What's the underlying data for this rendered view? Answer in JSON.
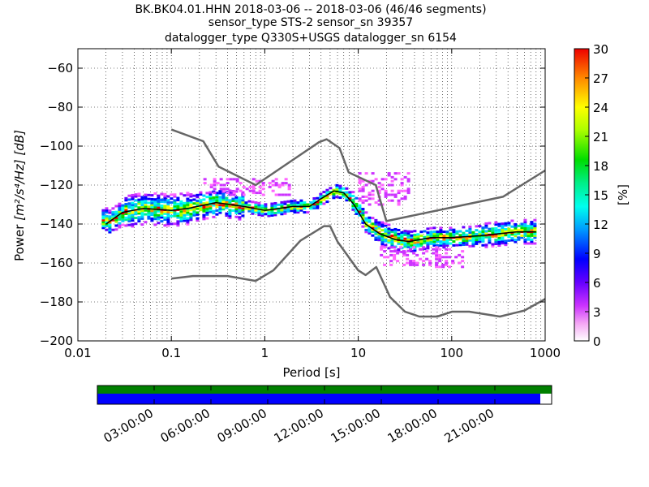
{
  "chart_data": {
    "type": "heatmap",
    "title_lines": [
      "BK.BK04.01.HHN   2018-03-06 -- 2018-03-06  (46/46 segments)",
      "sensor_type STS-2 sensor_sn 39357",
      "datalogger_type Q330S+USGS datalogger_sn 6154"
    ],
    "xlabel": "Period [s]",
    "ylabel_text": "Power",
    "ylabel_units": "[m²/s⁴/Hz] [dB]",
    "xscale": "log",
    "xlim": [
      0.01,
      1000
    ],
    "ylim": [
      -200,
      -50
    ],
    "x_ticks": [
      {
        "value": 0.01,
        "label": "0.01"
      },
      {
        "value": 0.1,
        "label": "0.1"
      },
      {
        "value": 1,
        "label": "1"
      },
      {
        "value": 10,
        "label": "10"
      },
      {
        "value": 100,
        "label": "100"
      },
      {
        "value": 1000,
        "label": "1000"
      }
    ],
    "y_ticks": [
      {
        "value": -60,
        "label": "−60"
      },
      {
        "value": -80,
        "label": "−80"
      },
      {
        "value": -100,
        "label": "−100"
      },
      {
        "value": -120,
        "label": "−120"
      },
      {
        "value": -140,
        "label": "−140"
      },
      {
        "value": -160,
        "label": "−160"
      },
      {
        "value": -180,
        "label": "−180"
      },
      {
        "value": -200,
        "label": "−200"
      }
    ],
    "grid": true,
    "colorbar": {
      "label": "[%]",
      "range": [
        0,
        30
      ],
      "ticks": [
        "0",
        "3",
        "6",
        "9",
        "12",
        "15",
        "18",
        "21",
        "24",
        "27",
        "30"
      ]
    },
    "series": [
      {
        "name": "NHNM",
        "color": "#666666",
        "points": [
          [
            0.1,
            -91.5
          ],
          [
            0.22,
            -97.5
          ],
          [
            0.32,
            -110.5
          ],
          [
            0.8,
            -120
          ],
          [
            3.8,
            -98
          ],
          [
            4.6,
            -96.5
          ],
          [
            6.3,
            -101
          ],
          [
            7.9,
            -113.5
          ],
          [
            15.4,
            -120
          ],
          [
            20,
            -138.5
          ],
          [
            354,
            -126
          ],
          [
            1000,
            -112.5
          ]
        ]
      },
      {
        "name": "NLNM",
        "color": "#666666",
        "points": [
          [
            0.1,
            -168
          ],
          [
            0.17,
            -166.7
          ],
          [
            0.4,
            -166.7
          ],
          [
            0.8,
            -169.2
          ],
          [
            1.24,
            -163.7
          ],
          [
            2.4,
            -148.6
          ],
          [
            4.3,
            -141.1
          ],
          [
            5,
            -141.1
          ],
          [
            6,
            -149
          ],
          [
            10,
            -163.8
          ],
          [
            12,
            -166.2
          ],
          [
            15.6,
            -162.1
          ],
          [
            21.9,
            -177.5
          ],
          [
            31.6,
            -185
          ],
          [
            45,
            -187.5
          ],
          [
            70,
            -187.5
          ],
          [
            101,
            -185
          ],
          [
            154,
            -185
          ],
          [
            328,
            -187.5
          ],
          [
            600,
            -184.4
          ],
          [
            1000,
            -178.5
          ]
        ]
      },
      {
        "name": "Mode",
        "color": "#000000",
        "points": [
          [
            0.02,
            -140
          ],
          [
            0.03,
            -134
          ],
          [
            0.05,
            -132
          ],
          [
            0.1,
            -133
          ],
          [
            0.15,
            -132
          ],
          [
            0.3,
            -129
          ],
          [
            0.6,
            -131
          ],
          [
            1,
            -133
          ],
          [
            2,
            -131
          ],
          [
            3,
            -131
          ],
          [
            4,
            -127
          ],
          [
            5.5,
            -123
          ],
          [
            7,
            -124
          ],
          [
            9,
            -130
          ],
          [
            12,
            -140
          ],
          [
            17,
            -145
          ],
          [
            25,
            -148
          ],
          [
            35,
            -149
          ],
          [
            60,
            -147
          ],
          [
            100,
            -147
          ],
          [
            200,
            -146
          ],
          [
            500,
            -144
          ],
          [
            800,
            -144
          ]
        ]
      }
    ],
    "heatmap_bands": [
      {
        "from": 0.018,
        "to": 0.03,
        "center": -138,
        "spread": 6
      },
      {
        "from": 0.03,
        "to": 0.15,
        "center": -132,
        "spread": 8
      },
      {
        "from": 0.15,
        "to": 0.6,
        "center": -130,
        "spread": 7
      },
      {
        "from": 0.6,
        "to": 3,
        "center": -132,
        "spread": 3
      },
      {
        "from": 3,
        "to": 8,
        "center": -124,
        "spread": 3
      },
      {
        "from": 8,
        "to": 14,
        "center": -133,
        "spread": 5
      },
      {
        "from": 14,
        "to": 40,
        "center": -147,
        "spread": 6
      },
      {
        "from": 40,
        "to": 200,
        "center": -147,
        "spread": 5
      },
      {
        "from": 200,
        "to": 800,
        "center": -143,
        "spread": 6
      }
    ],
    "scatter_regions": [
      {
        "from": 0.22,
        "to": 1.8,
        "center": -121,
        "spread": 4
      },
      {
        "from": 10,
        "to": 35,
        "center": -122,
        "spread": 8
      },
      {
        "from": 17,
        "to": 130,
        "center": -157,
        "spread": 5
      }
    ],
    "timeline": {
      "tick_labels": [
        "03:00:00",
        "06:00:00",
        "09:00:00",
        "12:00:00",
        "15:00:00",
        "18:00:00",
        "21:00:00"
      ],
      "tick_hours": [
        3,
        6,
        9,
        12,
        15,
        18,
        21
      ],
      "data_color": "#008000",
      "coverage_color": "#0000ff",
      "coverage_fraction": 0.975
    }
  }
}
